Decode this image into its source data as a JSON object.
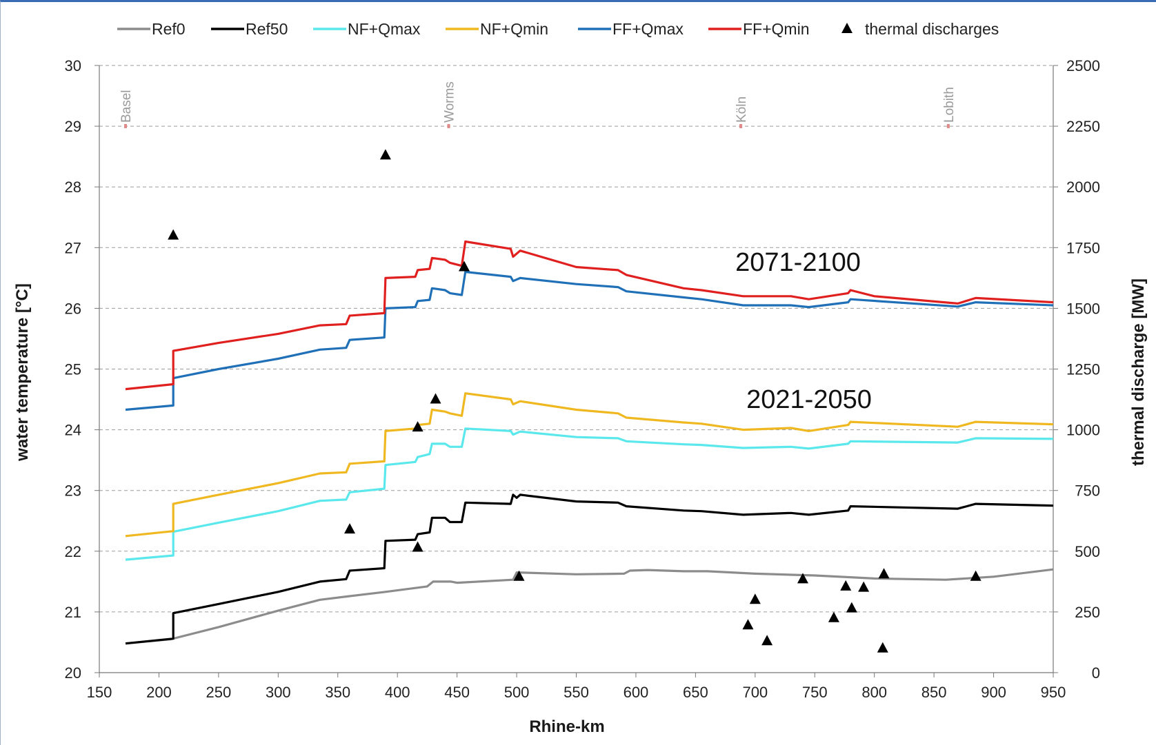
{
  "chart_data": {
    "type": "line",
    "xlabel": "Rhine-km",
    "ylabel": "water temperature  [°C]",
    "y2label": "thermal  discharge [MW]",
    "xlim": [
      150,
      950
    ],
    "ylim": [
      20,
      30
    ],
    "y2lim": [
      0,
      2500
    ],
    "xticks": [
      150,
      200,
      250,
      300,
      350,
      400,
      450,
      500,
      550,
      600,
      650,
      700,
      750,
      800,
      850,
      900,
      950
    ],
    "yticks": [
      20,
      21,
      22,
      23,
      24,
      25,
      26,
      27,
      28,
      29,
      30
    ],
    "y2ticks": [
      0,
      250,
      500,
      750,
      1000,
      1250,
      1500,
      1750,
      2000,
      2250,
      2500
    ],
    "grid": "horizontal dashed",
    "legend_position": "top",
    "series": [
      {
        "name": "Ref0",
        "color": "#8c8c8c",
        "points": [
          [
            172,
            20.48
          ],
          [
            210,
            20.55
          ],
          [
            250,
            20.75
          ],
          [
            300,
            21.02
          ],
          [
            335,
            21.2
          ],
          [
            360,
            21.26
          ],
          [
            390,
            21.33
          ],
          [
            425,
            21.42
          ],
          [
            430,
            21.5
          ],
          [
            445,
            21.5
          ],
          [
            450,
            21.48
          ],
          [
            497,
            21.53
          ],
          [
            500,
            21.65
          ],
          [
            550,
            21.62
          ],
          [
            590,
            21.63
          ],
          [
            595,
            21.68
          ],
          [
            610,
            21.69
          ],
          [
            640,
            21.67
          ],
          [
            660,
            21.67
          ],
          [
            700,
            21.63
          ],
          [
            750,
            21.6
          ],
          [
            800,
            21.55
          ],
          [
            860,
            21.53
          ],
          [
            900,
            21.58
          ],
          [
            950,
            21.7
          ]
        ]
      },
      {
        "name": "Ref50",
        "color": "#000000",
        "points": [
          [
            172,
            20.48
          ],
          [
            212,
            20.56
          ],
          [
            212,
            20.98
          ],
          [
            250,
            21.13
          ],
          [
            300,
            21.33
          ],
          [
            335,
            21.5
          ],
          [
            357,
            21.54
          ],
          [
            360,
            21.68
          ],
          [
            389,
            21.72
          ],
          [
            390,
            22.17
          ],
          [
            415,
            22.19
          ],
          [
            417,
            22.28
          ],
          [
            427,
            22.31
          ],
          [
            429,
            22.55
          ],
          [
            440,
            22.55
          ],
          [
            444,
            22.48
          ],
          [
            454,
            22.48
          ],
          [
            457,
            22.8
          ],
          [
            495,
            22.78
          ],
          [
            497,
            22.93
          ],
          [
            500,
            22.88
          ],
          [
            503,
            22.93
          ],
          [
            550,
            22.82
          ],
          [
            585,
            22.8
          ],
          [
            592,
            22.74
          ],
          [
            640,
            22.67
          ],
          [
            655,
            22.66
          ],
          [
            690,
            22.6
          ],
          [
            730,
            22.63
          ],
          [
            745,
            22.6
          ],
          [
            778,
            22.67
          ],
          [
            780,
            22.74
          ],
          [
            870,
            22.7
          ],
          [
            885,
            22.78
          ],
          [
            950,
            22.75
          ]
        ]
      },
      {
        "name": "NF+Qmax",
        "color": "#5ae8ec",
        "points": [
          [
            172,
            21.86
          ],
          [
            212,
            21.93
          ],
          [
            212,
            22.32
          ],
          [
            250,
            22.47
          ],
          [
            300,
            22.66
          ],
          [
            335,
            22.83
          ],
          [
            357,
            22.85
          ],
          [
            360,
            22.97
          ],
          [
            389,
            23.03
          ],
          [
            390,
            23.42
          ],
          [
            415,
            23.47
          ],
          [
            417,
            23.55
          ],
          [
            427,
            23.6
          ],
          [
            429,
            23.77
          ],
          [
            440,
            23.77
          ],
          [
            444,
            23.72
          ],
          [
            454,
            23.72
          ],
          [
            457,
            24.02
          ],
          [
            495,
            23.98
          ],
          [
            497,
            23.92
          ],
          [
            503,
            23.97
          ],
          [
            550,
            23.88
          ],
          [
            585,
            23.86
          ],
          [
            592,
            23.81
          ],
          [
            640,
            23.76
          ],
          [
            655,
            23.75
          ],
          [
            690,
            23.7
          ],
          [
            730,
            23.72
          ],
          [
            745,
            23.69
          ],
          [
            778,
            23.77
          ],
          [
            780,
            23.81
          ],
          [
            870,
            23.79
          ],
          [
            885,
            23.86
          ],
          [
            950,
            23.85
          ]
        ]
      },
      {
        "name": "NF+Qmin",
        "color": "#f0b820",
        "points": [
          [
            172,
            22.25
          ],
          [
            212,
            22.33
          ],
          [
            212,
            22.78
          ],
          [
            250,
            22.93
          ],
          [
            300,
            23.12
          ],
          [
            335,
            23.28
          ],
          [
            357,
            23.3
          ],
          [
            360,
            23.44
          ],
          [
            389,
            23.48
          ],
          [
            390,
            23.98
          ],
          [
            415,
            24.02
          ],
          [
            417,
            24.08
          ],
          [
            427,
            24.1
          ],
          [
            429,
            24.33
          ],
          [
            440,
            24.3
          ],
          [
            444,
            24.27
          ],
          [
            454,
            24.23
          ],
          [
            457,
            24.6
          ],
          [
            495,
            24.5
          ],
          [
            497,
            24.42
          ],
          [
            503,
            24.47
          ],
          [
            550,
            24.33
          ],
          [
            585,
            24.27
          ],
          [
            592,
            24.2
          ],
          [
            640,
            24.12
          ],
          [
            655,
            24.1
          ],
          [
            690,
            24.0
          ],
          [
            730,
            24.03
          ],
          [
            745,
            23.98
          ],
          [
            778,
            24.08
          ],
          [
            780,
            24.13
          ],
          [
            870,
            24.05
          ],
          [
            885,
            24.13
          ],
          [
            950,
            24.09
          ]
        ]
      },
      {
        "name": "FF+Qmax",
        "color": "#2070b8",
        "points": [
          [
            172,
            24.33
          ],
          [
            212,
            24.4
          ],
          [
            212,
            24.85
          ],
          [
            250,
            25.0
          ],
          [
            300,
            25.17
          ],
          [
            335,
            25.32
          ],
          [
            357,
            25.35
          ],
          [
            360,
            25.48
          ],
          [
            389,
            25.52
          ],
          [
            390,
            26.0
          ],
          [
            415,
            26.02
          ],
          [
            417,
            26.12
          ],
          [
            427,
            26.14
          ],
          [
            429,
            26.33
          ],
          [
            440,
            26.3
          ],
          [
            444,
            26.25
          ],
          [
            454,
            26.22
          ],
          [
            457,
            26.6
          ],
          [
            495,
            26.52
          ],
          [
            497,
            26.45
          ],
          [
            503,
            26.5
          ],
          [
            550,
            26.4
          ],
          [
            585,
            26.35
          ],
          [
            592,
            26.28
          ],
          [
            640,
            26.18
          ],
          [
            655,
            26.15
          ],
          [
            690,
            26.05
          ],
          [
            730,
            26.05
          ],
          [
            745,
            26.02
          ],
          [
            778,
            26.1
          ],
          [
            780,
            26.15
          ],
          [
            870,
            26.03
          ],
          [
            885,
            26.1
          ],
          [
            950,
            26.05
          ]
        ]
      },
      {
        "name": "FF+Qmin",
        "color": "#e01f1f",
        "points": [
          [
            172,
            24.67
          ],
          [
            212,
            24.75
          ],
          [
            212,
            25.3
          ],
          [
            250,
            25.43
          ],
          [
            300,
            25.58
          ],
          [
            335,
            25.72
          ],
          [
            357,
            25.74
          ],
          [
            360,
            25.88
          ],
          [
            389,
            25.92
          ],
          [
            390,
            26.5
          ],
          [
            415,
            26.52
          ],
          [
            417,
            26.63
          ],
          [
            427,
            26.65
          ],
          [
            429,
            26.83
          ],
          [
            440,
            26.8
          ],
          [
            444,
            26.75
          ],
          [
            454,
            26.7
          ],
          [
            457,
            27.1
          ],
          [
            495,
            26.98
          ],
          [
            497,
            26.85
          ],
          [
            503,
            26.95
          ],
          [
            550,
            26.68
          ],
          [
            585,
            26.63
          ],
          [
            592,
            26.55
          ],
          [
            640,
            26.33
          ],
          [
            655,
            26.3
          ],
          [
            690,
            26.2
          ],
          [
            730,
            26.2
          ],
          [
            745,
            26.15
          ],
          [
            778,
            26.25
          ],
          [
            780,
            26.3
          ],
          [
            800,
            26.2
          ],
          [
            870,
            26.08
          ],
          [
            885,
            26.17
          ],
          [
            950,
            26.1
          ]
        ]
      }
    ],
    "scatter": {
      "name": "thermal discharges",
      "axis": "y2",
      "points": [
        [
          212,
          1800
        ],
        [
          360,
          590
        ],
        [
          390,
          2130
        ],
        [
          417,
          515
        ],
        [
          417,
          1010
        ],
        [
          432,
          1125
        ],
        [
          456,
          1670
        ],
        [
          502,
          395
        ],
        [
          694,
          195
        ],
        [
          700,
          300
        ],
        [
          710,
          130
        ],
        [
          740,
          385
        ],
        [
          766,
          225
        ],
        [
          776,
          355
        ],
        [
          781,
          265
        ],
        [
          791,
          350
        ],
        [
          807,
          100
        ],
        [
          808,
          405
        ],
        [
          885,
          395
        ]
      ]
    },
    "annotations": [
      "2071-2100",
      "2021-2050"
    ],
    "locations": [
      {
        "name": "Basel",
        "km": 172
      },
      {
        "name": "Worms",
        "km": 443
      },
      {
        "name": "Köln",
        "km": 688
      },
      {
        "name": "Lobith",
        "km": 862
      }
    ]
  }
}
